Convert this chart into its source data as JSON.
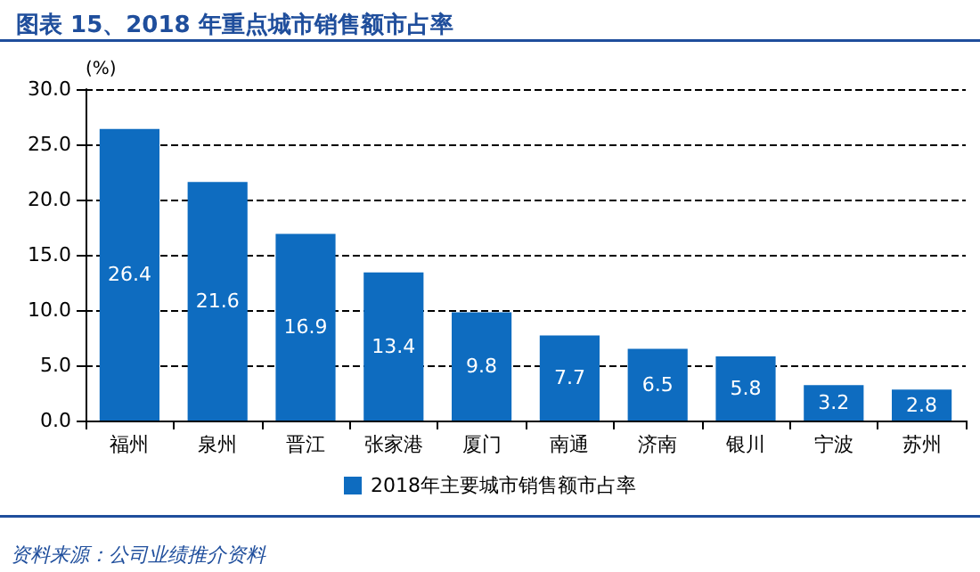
{
  "chart_data": {
    "type": "bar",
    "title": "图表 15、2018 年重点城市销售额市占率",
    "ylabel": "(%)",
    "categories": [
      "福州",
      "泉州",
      "晋江",
      "张家港",
      "厦门",
      "南通",
      "济南",
      "银川",
      "宁波",
      "苏州"
    ],
    "series": [
      {
        "name": "2018年主要城市销售额市占率",
        "color": "#0e6cc0",
        "values": [
          26.4,
          21.6,
          16.9,
          13.4,
          9.8,
          7.7,
          6.5,
          5.8,
          3.2,
          2.8
        ]
      }
    ],
    "ylim": [
      0,
      30
    ],
    "yticks": [
      "0.0",
      "5.0",
      "10.0",
      "15.0",
      "20.0",
      "25.0",
      "30.0"
    ],
    "data_labels": true,
    "grid": "y",
    "legend": "bottom",
    "annotations": [
      "资料来源：公司业绩推介资料"
    ]
  }
}
